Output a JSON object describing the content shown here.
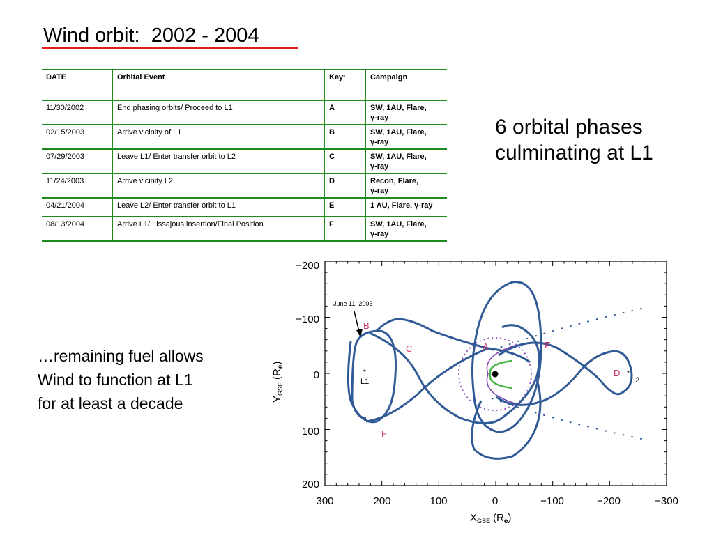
{
  "title": "Wind orbit:  2002 - 2004",
  "table": {
    "headers": [
      "DATE",
      "Orbital Event",
      "Key",
      "Campaign"
    ],
    "key_superscript": "*",
    "rows": [
      {
        "date": "11/30/2002",
        "event": "End phasing orbits/ Proceed to L1",
        "key": "A",
        "campaign_line1": "SW, 1AU, Flare,",
        "campaign_line2": "γ-ray"
      },
      {
        "date": "02/15/2003",
        "event": "Arrive vicinity of L1",
        "key": "B",
        "campaign_line1": "SW, 1AU, Flare,",
        "campaign_line2": "γ-ray"
      },
      {
        "date": "07/29/2003",
        "event": "Leave L1/ Enter transfer orbit to L2",
        "key": "C",
        "campaign_line1": "SW, 1AU, Flare,",
        "campaign_line2": "γ-ray"
      },
      {
        "date": "11/24/2003",
        "event": "Arrive vicinity L2",
        "key": "D",
        "campaign_line1": "Recon, Flare,",
        "campaign_line2": "γ-ray"
      },
      {
        "date": "04/21/2004",
        "event": "Leave L2/ Enter transfer orbit to L1",
        "key": "E",
        "campaign_line1": "1 AU, Flare, γ-ray",
        "campaign_line2": ""
      },
      {
        "date": "08/13/2004",
        "event": "Arrive L1/ Lissajous insertion/Final Position",
        "key": "F",
        "campaign_line1": "SW, 1AU, Flare,",
        "campaign_line2": "γ-ray"
      }
    ]
  },
  "phases_text_line1": "6 orbital phases",
  "phases_text_line2": "culminating at L1",
  "fuel_text_line1": "…remaining fuel allows",
  "fuel_text_line2": "Wind to function at L1",
  "fuel_text_line3": "for at least a decade",
  "plot": {
    "y_ticks": [
      "−200",
      "−100",
      "0",
      "100",
      "200"
    ],
    "x_ticks": [
      "300",
      "200",
      "100",
      "0",
      "−100",
      "−200",
      "−300"
    ],
    "y_label_main": "Y",
    "y_label_sub": "GSE",
    "y_label_unit": "(R",
    "y_label_unit_sub": "e",
    "y_label_close": ")",
    "x_label_main": "X",
    "x_label_sub": "GSE",
    "x_label_unit": "(R",
    "x_label_unit_sub": "e",
    "x_label_close": ")",
    "annotation": "June 11, 2003",
    "point_labels": [
      "A",
      "B",
      "C",
      "D",
      "E",
      "F"
    ],
    "l1_label": "L1",
    "l2_label": "L2",
    "l_marker": "*",
    "colors": {
      "orbit": "#2f5a96",
      "labels": "#c8336e",
      "bow": "#7b3fb0",
      "magnetopause": "#44b544"
    }
  }
}
